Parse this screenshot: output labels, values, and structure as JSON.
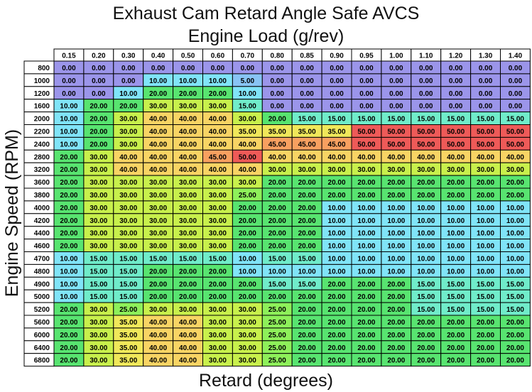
{
  "chart_data": {
    "type": "heatmap",
    "title": "Exhaust Cam Retard Angle Safe AVCS",
    "xlabel": "Engine Load (g/rev)",
    "ylabel": "Engine Speed (RPM)",
    "value_label": "Retard (degrees)",
    "x": [
      "0.15",
      "0.20",
      "0.30",
      "0.40",
      "0.50",
      "0.60",
      "0.70",
      "0.80",
      "0.85",
      "0.90",
      "0.95",
      "1.00",
      "1.10",
      "1.20",
      "1.30",
      "1.40"
    ],
    "y": [
      "800",
      "1000",
      "1200",
      "1600",
      "2000",
      "2200",
      "2400",
      "2800",
      "3200",
      "3600",
      "3800",
      "4000",
      "4200",
      "4400",
      "4600",
      "4700",
      "4800",
      "4900",
      "5000",
      "5200",
      "5600",
      "6000",
      "6400",
      "6800"
    ],
    "values": [
      [
        0,
        0,
        0,
        0,
        0,
        0,
        0,
        0,
        0,
        0,
        0,
        0,
        0,
        0,
        0,
        0
      ],
      [
        0,
        0,
        0,
        10,
        10,
        10,
        5,
        0,
        0,
        0,
        0,
        0,
        0,
        0,
        0,
        0
      ],
      [
        0,
        0,
        10,
        20,
        20,
        20,
        10,
        0,
        0,
        0,
        0,
        0,
        0,
        0,
        0,
        0
      ],
      [
        10,
        20,
        20,
        30,
        30,
        30,
        15,
        0,
        0,
        0,
        0,
        0,
        0,
        0,
        0,
        0
      ],
      [
        10,
        20,
        30,
        40,
        40,
        40,
        30,
        20,
        15,
        15,
        15,
        15,
        15,
        15,
        15,
        15
      ],
      [
        10,
        20,
        30,
        40,
        40,
        40,
        35,
        35,
        35,
        35,
        50,
        50,
        50,
        50,
        50,
        50
      ],
      [
        10,
        20,
        30,
        40,
        40,
        40,
        40,
        45,
        45,
        45,
        50,
        50,
        50,
        50,
        50,
        50
      ],
      [
        20,
        30,
        40,
        40,
        40,
        45,
        50,
        40,
        40,
        40,
        40,
        40,
        40,
        40,
        40,
        40
      ],
      [
        20,
        30,
        40,
        40,
        40,
        40,
        40,
        30,
        30,
        30,
        30,
        30,
        30,
        30,
        30,
        30
      ],
      [
        20,
        30,
        30,
        30,
        30,
        30,
        30,
        20,
        20,
        20,
        20,
        20,
        20,
        20,
        20,
        20
      ],
      [
        20,
        30,
        30,
        30,
        30,
        30,
        25,
        20,
        20,
        20,
        20,
        20,
        20,
        20,
        20,
        20
      ],
      [
        20,
        30,
        30,
        30,
        30,
        30,
        20,
        20,
        20,
        10,
        10,
        10,
        10,
        10,
        10,
        10
      ],
      [
        20,
        30,
        30,
        30,
        30,
        30,
        20,
        20,
        20,
        10,
        10,
        10,
        10,
        10,
        10,
        10
      ],
      [
        20,
        30,
        30,
        30,
        30,
        30,
        20,
        20,
        20,
        10,
        10,
        10,
        10,
        10,
        10,
        10
      ],
      [
        20,
        30,
        30,
        30,
        30,
        30,
        20,
        20,
        20,
        10,
        10,
        10,
        10,
        10,
        10,
        10
      ],
      [
        10,
        15,
        15,
        15,
        15,
        15,
        10,
        15,
        15,
        10,
        10,
        10,
        10,
        10,
        10,
        10
      ],
      [
        10,
        15,
        15,
        20,
        20,
        20,
        10,
        10,
        10,
        10,
        10,
        10,
        10,
        10,
        10,
        10
      ],
      [
        10,
        15,
        15,
        20,
        20,
        20,
        20,
        15,
        15,
        20,
        20,
        20,
        15,
        15,
        15,
        15
      ],
      [
        10,
        15,
        15,
        20,
        20,
        20,
        20,
        20,
        20,
        20,
        20,
        20,
        15,
        15,
        15,
        15
      ],
      [
        20,
        30,
        25,
        30,
        30,
        30,
        30,
        25,
        20,
        20,
        20,
        20,
        15,
        15,
        15,
        15
      ],
      [
        20,
        30,
        35,
        40,
        40,
        30,
        30,
        25,
        20,
        20,
        20,
        20,
        20,
        20,
        20,
        20
      ],
      [
        20,
        30,
        35,
        40,
        40,
        30,
        30,
        25,
        20,
        20,
        20,
        20,
        20,
        20,
        20,
        20
      ],
      [
        20,
        30,
        35,
        40,
        40,
        30,
        30,
        25,
        20,
        20,
        20,
        20,
        20,
        20,
        20,
        20
      ],
      [
        20,
        30,
        35,
        40,
        40,
        30,
        30,
        25,
        20,
        20,
        20,
        20,
        20,
        20,
        20,
        20
      ]
    ],
    "color_scale": {
      "0": "#9b95ea",
      "5": "#88c4f4",
      "10": "#80e4f8",
      "15": "#70ecca",
      "20": "#58e470",
      "25": "#8ef05a",
      "30": "#c8f04c",
      "35": "#f0e85a",
      "40": "#f8d464",
      "45": "#f8a060",
      "50": "#ee5a58"
    }
  }
}
